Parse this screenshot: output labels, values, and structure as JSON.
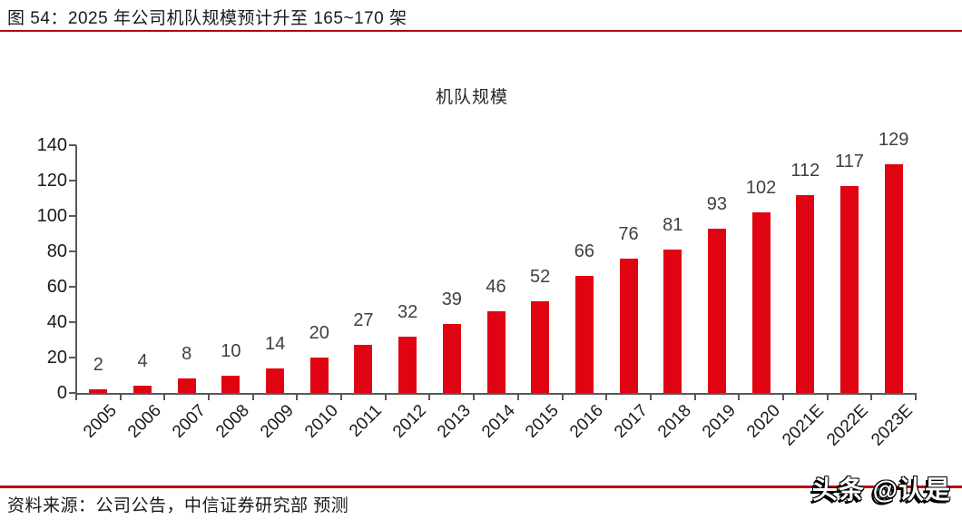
{
  "caption": {
    "text": "图 54：2025 年公司机队规模预计升至 165~170 架"
  },
  "source": {
    "text": "资料来源：公司公告，中信证券研究部 预测"
  },
  "watermark": {
    "text": "头条 @认是"
  },
  "colors": {
    "top_rule": "#a80b0b",
    "bottom_rule": "#c00000",
    "bar": "#e00413",
    "axis": "#595959",
    "value_label": "#404040"
  },
  "chart_data": {
    "type": "bar",
    "title": "机队规模",
    "categories": [
      "2005",
      "2006",
      "2007",
      "2008",
      "2009",
      "2010",
      "2011",
      "2012",
      "2013",
      "2014",
      "2015",
      "2016",
      "2017",
      "2018",
      "2019",
      "2020",
      "2021E",
      "2022E",
      "2023E"
    ],
    "values": [
      2,
      4,
      8,
      10,
      14,
      20,
      27,
      32,
      39,
      46,
      52,
      66,
      76,
      81,
      93,
      102,
      112,
      117,
      129
    ],
    "xlabel": "",
    "ylabel": "",
    "ylim": [
      0,
      140
    ],
    "yticks": [
      0,
      20,
      40,
      60,
      80,
      100,
      120,
      140
    ],
    "xlabel_rotation_deg": 45,
    "grid": false,
    "legend_position": "none",
    "data_labels": true
  }
}
